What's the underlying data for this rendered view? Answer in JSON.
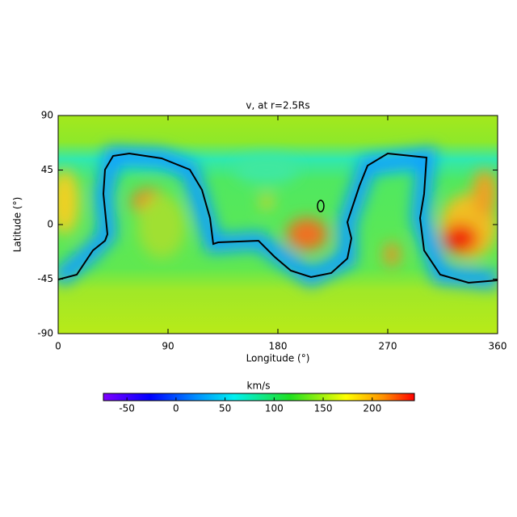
{
  "chart_data": {
    "type": "heatmap",
    "title": "v, at r=2.5Rs",
    "xlabel": "Longitude (°)",
    "ylabel": "Latitude (°)",
    "xlim": [
      0,
      360
    ],
    "xticks": [
      0,
      90,
      180,
      270,
      360
    ],
    "ylim": [
      -90,
      90
    ],
    "yticks": [
      -90,
      -45,
      0,
      45,
      90
    ],
    "colorbar": {
      "label": "km/s",
      "lim": [
        -74,
        243
      ],
      "ticks": [
        -50,
        0,
        50,
        100,
        150,
        200
      ]
    }
  }
}
